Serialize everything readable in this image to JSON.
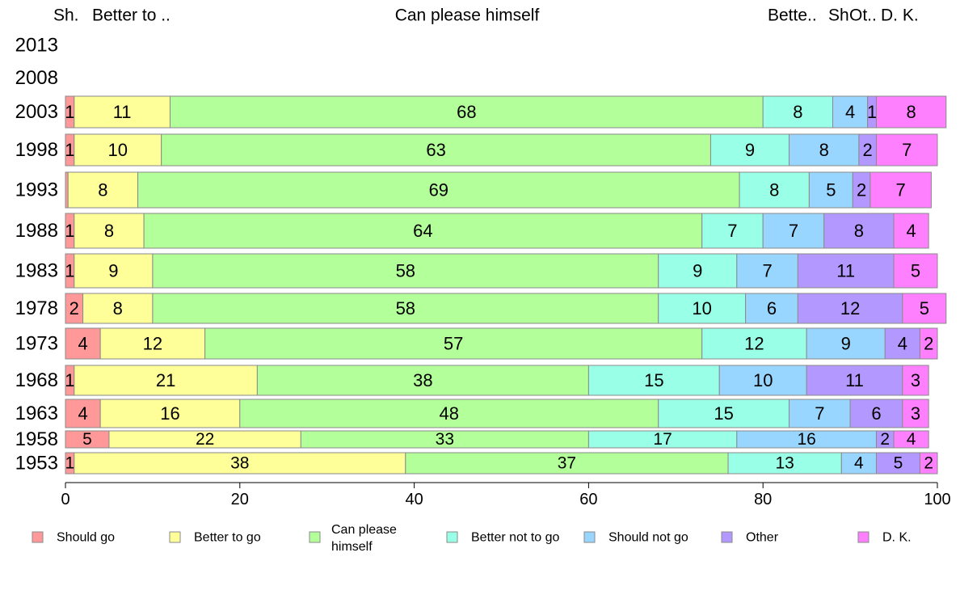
{
  "chart_data": {
    "type": "bar",
    "orientation": "horizontal",
    "stacked": true,
    "title": "",
    "xlabel": "",
    "ylabel": "",
    "xlim": [
      0,
      100
    ],
    "x_ticks": [
      "0",
      "20",
      "40",
      "60",
      "80",
      "100"
    ],
    "grid": false,
    "legend_position": "bottom",
    "top_labels": [
      "Sh.",
      "Better to ..",
      "Can please himself",
      "Bette..",
      "Sh",
      "Ot..",
      "D. K."
    ],
    "categories": [
      "2013",
      "2008",
      "2003",
      "1998",
      "1993",
      "1988",
      "1983",
      "1978",
      "1973",
      "1968",
      "1963",
      "1958",
      "1953"
    ],
    "series": [
      {
        "name": "Should go",
        "color": "#ff9999",
        "values": [
          null,
          null,
          1,
          1,
          0.3,
          1,
          1,
          2,
          4,
          1,
          4,
          5,
          1
        ],
        "labels": [
          "",
          "",
          "1",
          "1",
          "",
          "1",
          "1",
          "2",
          "4",
          "1",
          "4",
          "5",
          "1"
        ]
      },
      {
        "name": "Better to go",
        "color": "#ffff99",
        "values": [
          null,
          null,
          11,
          10,
          8,
          8,
          9,
          8,
          12,
          21,
          16,
          22,
          38
        ],
        "labels": [
          "",
          "",
          "11",
          "10",
          "8",
          "8",
          "9",
          "8",
          "12",
          "21",
          "16",
          "22",
          "38"
        ]
      },
      {
        "name": "Can please himself",
        "color": "#b3ff99",
        "values": [
          null,
          null,
          68,
          63,
          69,
          64,
          58,
          58,
          57,
          38,
          48,
          33,
          37
        ],
        "labels": [
          "",
          "",
          "68",
          "63",
          "69",
          "64",
          "58",
          "58",
          "57",
          "38",
          "48",
          "33",
          "37"
        ]
      },
      {
        "name": "Better not to go",
        "color": "#99ffe6",
        "values": [
          null,
          null,
          8,
          9,
          8,
          7,
          9,
          10,
          12,
          15,
          15,
          17,
          13
        ],
        "labels": [
          "",
          "",
          "8",
          "9",
          "8",
          "7",
          "9",
          "10",
          "12",
          "15",
          "15",
          "17",
          "13"
        ]
      },
      {
        "name": "Should not go",
        "color": "#99d6ff",
        "values": [
          null,
          null,
          4,
          8,
          5,
          7,
          7,
          6,
          9,
          10,
          7,
          16,
          4
        ],
        "labels": [
          "",
          "",
          "4",
          "8",
          "5",
          "7",
          "7",
          "6",
          "9",
          "10",
          "7",
          "16",
          "4"
        ]
      },
      {
        "name": "Other",
        "color": "#b399ff",
        "values": [
          null,
          null,
          1,
          2,
          2,
          8,
          11,
          12,
          4,
          11,
          6,
          2,
          5
        ],
        "labels": [
          "",
          "",
          "1",
          "2",
          "2",
          "8",
          "11",
          "12",
          "4",
          "11",
          "6",
          "2",
          "5"
        ]
      },
      {
        "name": "D. K.",
        "color": "#ff80ff",
        "values": [
          null,
          null,
          8,
          7,
          7,
          4,
          5,
          5,
          2,
          3,
          3,
          4,
          2
        ],
        "labels": [
          "",
          "",
          "8",
          "7",
          "7",
          "4",
          "5",
          "5",
          "2",
          "3",
          "3",
          "4",
          "2"
        ]
      }
    ],
    "legend_labels": [
      "Should go",
      "Better to go",
      "Can please|himself",
      "Better not to go",
      "Should not go",
      "Other",
      "D. K."
    ]
  }
}
